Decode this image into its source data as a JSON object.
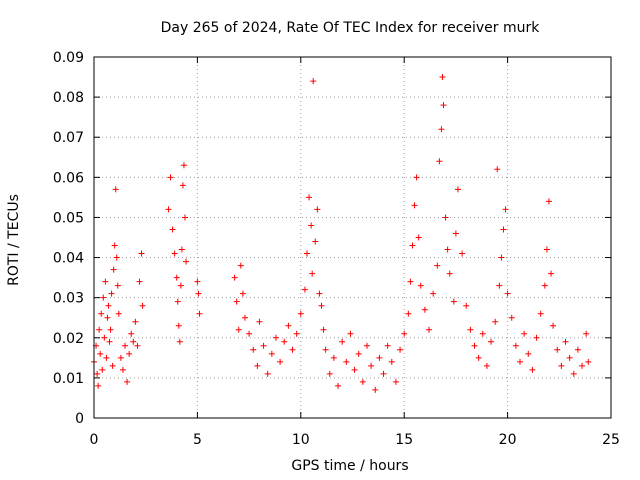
{
  "chart_data": {
    "type": "scatter",
    "title": "Day 265 of 2024, Rate Of TEC Index for receiver murk",
    "xlabel": "GPS time / hours",
    "ylabel": "ROTI / TECUs",
    "xlim": [
      0,
      25
    ],
    "ylim": [
      0,
      0.09
    ],
    "x_ticks": [
      "0",
      "5",
      "10",
      "15",
      "20",
      "25"
    ],
    "y_ticks": [
      "0",
      "0.01",
      "0.02",
      "0.03",
      "0.04",
      "0.05",
      "0.06",
      "0.07",
      "0.08",
      "0.09"
    ],
    "grid": true,
    "legend": "none",
    "marker": "+",
    "color": "#ff0000",
    "series": [
      {
        "points": [
          [
            0.0,
            0.014
          ],
          [
            0.1,
            0.018
          ],
          [
            0.15,
            0.011
          ],
          [
            0.2,
            0.008
          ],
          [
            0.25,
            0.022
          ],
          [
            0.3,
            0.016
          ],
          [
            0.35,
            0.026
          ],
          [
            0.4,
            0.012
          ],
          [
            0.45,
            0.03
          ],
          [
            0.5,
            0.02
          ],
          [
            0.55,
            0.034
          ],
          [
            0.6,
            0.015
          ],
          [
            0.65,
            0.025
          ],
          [
            0.7,
            0.028
          ],
          [
            0.75,
            0.019
          ],
          [
            0.8,
            0.022
          ],
          [
            0.85,
            0.031
          ],
          [
            0.9,
            0.013
          ],
          [
            0.95,
            0.037
          ],
          [
            1.0,
            0.043
          ],
          [
            1.05,
            0.057
          ],
          [
            1.1,
            0.04
          ],
          [
            1.15,
            0.033
          ],
          [
            1.2,
            0.026
          ],
          [
            1.3,
            0.015
          ],
          [
            1.4,
            0.012
          ],
          [
            1.5,
            0.018
          ],
          [
            1.6,
            0.009
          ],
          [
            1.7,
            0.016
          ],
          [
            1.8,
            0.021
          ],
          [
            1.9,
            0.019
          ],
          [
            2.0,
            0.024
          ],
          [
            2.1,
            0.018
          ],
          [
            2.2,
            0.034
          ],
          [
            2.3,
            0.041
          ],
          [
            2.35,
            0.028
          ],
          [
            3.6,
            0.052
          ],
          [
            3.7,
            0.06
          ],
          [
            3.8,
            0.047
          ],
          [
            3.9,
            0.041
          ],
          [
            4.0,
            0.035
          ],
          [
            4.05,
            0.029
          ],
          [
            4.1,
            0.023
          ],
          [
            4.15,
            0.019
          ],
          [
            4.2,
            0.033
          ],
          [
            4.25,
            0.042
          ],
          [
            4.3,
            0.058
          ],
          [
            4.35,
            0.063
          ],
          [
            4.4,
            0.05
          ],
          [
            4.45,
            0.039
          ],
          [
            5.0,
            0.034
          ],
          [
            5.05,
            0.031
          ],
          [
            5.1,
            0.026
          ],
          [
            6.8,
            0.035
          ],
          [
            6.9,
            0.029
          ],
          [
            7.0,
            0.022
          ],
          [
            7.1,
            0.038
          ],
          [
            7.2,
            0.031
          ],
          [
            7.3,
            0.025
          ],
          [
            7.5,
            0.021
          ],
          [
            7.7,
            0.017
          ],
          [
            7.9,
            0.013
          ],
          [
            8.0,
            0.024
          ],
          [
            8.2,
            0.018
          ],
          [
            8.4,
            0.011
          ],
          [
            8.6,
            0.016
          ],
          [
            8.8,
            0.02
          ],
          [
            9.0,
            0.014
          ],
          [
            9.2,
            0.019
          ],
          [
            9.4,
            0.023
          ],
          [
            9.6,
            0.017
          ],
          [
            9.8,
            0.021
          ],
          [
            10.0,
            0.026
          ],
          [
            10.2,
            0.032
          ],
          [
            10.3,
            0.041
          ],
          [
            10.4,
            0.055
          ],
          [
            10.5,
            0.048
          ],
          [
            10.55,
            0.036
          ],
          [
            10.6,
            0.084
          ],
          [
            10.7,
            0.044
          ],
          [
            10.8,
            0.052
          ],
          [
            10.9,
            0.031
          ],
          [
            11.0,
            0.028
          ],
          [
            11.1,
            0.022
          ],
          [
            11.2,
            0.017
          ],
          [
            11.4,
            0.011
          ],
          [
            11.6,
            0.015
          ],
          [
            11.8,
            0.008
          ],
          [
            12.0,
            0.019
          ],
          [
            12.2,
            0.014
          ],
          [
            12.4,
            0.021
          ],
          [
            12.6,
            0.012
          ],
          [
            12.8,
            0.016
          ],
          [
            13.0,
            0.009
          ],
          [
            13.2,
            0.018
          ],
          [
            13.4,
            0.013
          ],
          [
            13.6,
            0.007
          ],
          [
            13.8,
            0.015
          ],
          [
            14.0,
            0.011
          ],
          [
            14.2,
            0.018
          ],
          [
            14.4,
            0.014
          ],
          [
            14.6,
            0.009
          ],
          [
            14.8,
            0.017
          ],
          [
            15.0,
            0.021
          ],
          [
            15.2,
            0.026
          ],
          [
            15.3,
            0.034
          ],
          [
            15.4,
            0.043
          ],
          [
            15.5,
            0.053
          ],
          [
            15.6,
            0.06
          ],
          [
            15.7,
            0.045
          ],
          [
            15.8,
            0.033
          ],
          [
            16.0,
            0.027
          ],
          [
            16.2,
            0.022
          ],
          [
            16.4,
            0.031
          ],
          [
            16.6,
            0.038
          ],
          [
            16.7,
            0.064
          ],
          [
            16.8,
            0.072
          ],
          [
            16.85,
            0.085
          ],
          [
            16.9,
            0.078
          ],
          [
            17.0,
            0.05
          ],
          [
            17.1,
            0.042
          ],
          [
            17.2,
            0.036
          ],
          [
            17.4,
            0.029
          ],
          [
            17.5,
            0.046
          ],
          [
            17.6,
            0.057
          ],
          [
            17.8,
            0.041
          ],
          [
            18.0,
            0.028
          ],
          [
            18.2,
            0.022
          ],
          [
            18.4,
            0.018
          ],
          [
            18.6,
            0.015
          ],
          [
            18.8,
            0.021
          ],
          [
            19.0,
            0.013
          ],
          [
            19.2,
            0.019
          ],
          [
            19.4,
            0.024
          ],
          [
            19.5,
            0.062
          ],
          [
            19.6,
            0.033
          ],
          [
            19.7,
            0.04
          ],
          [
            19.8,
            0.047
          ],
          [
            19.9,
            0.052
          ],
          [
            20.0,
            0.031
          ],
          [
            20.2,
            0.025
          ],
          [
            20.4,
            0.018
          ],
          [
            20.6,
            0.014
          ],
          [
            20.8,
            0.021
          ],
          [
            21.0,
            0.016
          ],
          [
            21.2,
            0.012
          ],
          [
            21.4,
            0.02
          ],
          [
            21.6,
            0.026
          ],
          [
            21.8,
            0.033
          ],
          [
            21.9,
            0.042
          ],
          [
            22.0,
            0.054
          ],
          [
            22.1,
            0.036
          ],
          [
            22.2,
            0.023
          ],
          [
            22.4,
            0.017
          ],
          [
            22.6,
            0.013
          ],
          [
            22.8,
            0.019
          ],
          [
            23.0,
            0.015
          ],
          [
            23.2,
            0.011
          ],
          [
            23.4,
            0.017
          ],
          [
            23.6,
            0.013
          ],
          [
            23.8,
            0.021
          ],
          [
            23.9,
            0.014
          ]
        ]
      }
    ]
  }
}
